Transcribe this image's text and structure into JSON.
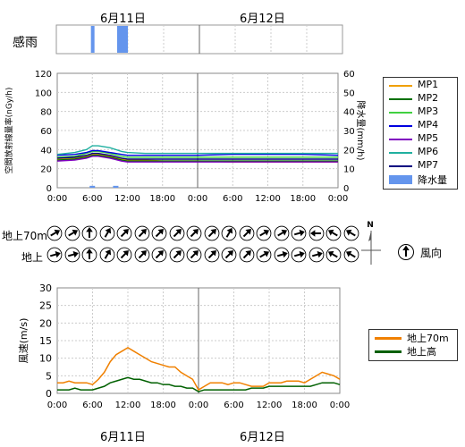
{
  "dates": {
    "day1": "6月11日",
    "day2": "6月12日"
  },
  "rain_sense": {
    "label": "感雨",
    "day1_intervals_hours": [
      [
        5.8,
        6.4
      ],
      [
        10.2,
        12.0
      ]
    ]
  },
  "time_ticks": [
    "0:00",
    "6:00",
    "12:00",
    "18:00",
    "0:00",
    "6:00",
    "12:00",
    "18:00",
    "0:00"
  ],
  "radiation_chart": {
    "ylabel_left": "空間放射線量率(nGy/h)",
    "ylabel_right": "降水量(mm/h)",
    "left_ticks": [
      "0",
      "20",
      "40",
      "60",
      "80",
      "100",
      "120"
    ],
    "right_ticks": [
      "0",
      "10",
      "20",
      "30",
      "40",
      "50",
      "60"
    ]
  },
  "wind_dir": {
    "row1_label": "地上70m",
    "row2_label": "地上",
    "legend_label": "風向",
    "north_label": "N",
    "row1_angles": [
      60,
      60,
      0,
      30,
      45,
      45,
      45,
      45,
      45,
      45,
      30,
      45,
      60,
      60,
      75,
      270,
      300,
      300
    ],
    "row2_angles": [
      75,
      75,
      0,
      30,
      45,
      45,
      45,
      45,
      45,
      45,
      45,
      45,
      60,
      75,
      75,
      75,
      300,
      300
    ]
  },
  "wind_chart": {
    "ylabel": "風速(m/s)",
    "ticks": [
      "0",
      "5",
      "10",
      "15",
      "20",
      "25",
      "30"
    ]
  },
  "chart_data": [
    {
      "type": "line",
      "title": "",
      "ylabel": "空間放射線量率(nGy/h)",
      "ylim": [
        0,
        120
      ],
      "y2label": "降水量(mm/h)",
      "y2lim": [
        0,
        60
      ],
      "x_range_hours": [
        0,
        48
      ],
      "x_ticks": [
        "0:00",
        "6:00",
        "12:00",
        "18:00",
        "0:00",
        "6:00",
        "12:00",
        "18:00",
        "0:00"
      ],
      "x_hours": [
        0,
        3,
        5,
        6,
        7,
        9,
        11,
        12,
        15,
        18,
        24,
        30,
        36,
        42,
        48
      ],
      "series": [
        {
          "name": "MP1",
          "color": "#f0a000",
          "values": [
            30,
            31,
            33,
            35,
            35,
            33,
            30,
            29,
            29,
            28,
            28,
            27,
            27,
            27,
            27
          ]
        },
        {
          "name": "MP2",
          "color": "#007000",
          "values": [
            29,
            30,
            32,
            34,
            34,
            32,
            29,
            28,
            28,
            28,
            28,
            28,
            28,
            28,
            28
          ]
        },
        {
          "name": "MP3",
          "color": "#40d040",
          "values": [
            32,
            33,
            36,
            38,
            38,
            36,
            33,
            32,
            32,
            32,
            32,
            32,
            32,
            32,
            32
          ]
        },
        {
          "name": "MP4",
          "color": "#0000e0",
          "values": [
            34,
            35,
            37,
            39,
            39,
            37,
            35,
            34,
            34,
            34,
            34,
            35,
            35,
            35,
            34
          ]
        },
        {
          "name": "MP5",
          "color": "#8000c0",
          "values": [
            28,
            29,
            31,
            33,
            33,
            31,
            28,
            27,
            27,
            27,
            27,
            27,
            27,
            27,
            27
          ]
        },
        {
          "name": "MP6",
          "color": "#20b0a0",
          "values": [
            35,
            37,
            40,
            44,
            44,
            42,
            38,
            37,
            36,
            36,
            36,
            36,
            36,
            36,
            36
          ]
        },
        {
          "name": "MP7",
          "color": "#000080",
          "values": [
            31,
            32,
            34,
            36,
            36,
            34,
            31,
            30,
            30,
            30,
            30,
            30,
            30,
            30,
            30
          ]
        }
      ],
      "precip": {
        "name": "降水量",
        "color": "#6495ed",
        "x_hours": [
          6,
          10
        ],
        "values": [
          1,
          1
        ]
      },
      "grid": true,
      "legend": "right"
    },
    {
      "type": "line",
      "title": "",
      "ylabel": "風速(m/s)",
      "ylim": [
        0,
        30
      ],
      "x_range_hours": [
        0,
        48
      ],
      "x_ticks": [
        "0:00",
        "6:00",
        "12:00",
        "18:00",
        "0:00",
        "6:00",
        "12:00",
        "18:00",
        "0:00"
      ],
      "x_hours": [
        0,
        1,
        2,
        3,
        4,
        5,
        6,
        7,
        8,
        9,
        10,
        11,
        12,
        13,
        14,
        15,
        16,
        17,
        18,
        19,
        20,
        21,
        22,
        23,
        24,
        25,
        26,
        27,
        28,
        29,
        30,
        31,
        32,
        33,
        34,
        35,
        36,
        37,
        38,
        39,
        40,
        41,
        42,
        43,
        44,
        45,
        46,
        47,
        48
      ],
      "series": [
        {
          "name": "地上70m",
          "color": "#f08000",
          "values": [
            3,
            3,
            3.5,
            3,
            3,
            3,
            2.5,
            4,
            6,
            9,
            11,
            12,
            13,
            12,
            11,
            10,
            9,
            8.5,
            8,
            7.5,
            7.5,
            6,
            5,
            4,
            1,
            2,
            3,
            3,
            3,
            2.5,
            3,
            3,
            2.5,
            2,
            2,
            2,
            3,
            3,
            3,
            3.5,
            3.5,
            3.5,
            3,
            4,
            5,
            6,
            5.5,
            5,
            4
          ]
        },
        {
          "name": "地上高",
          "color": "#006000",
          "values": [
            1,
            1,
            1,
            1.5,
            1,
            1,
            1,
            1.5,
            2,
            3,
            3.5,
            4,
            4.5,
            4,
            4,
            3.5,
            3,
            3,
            2.5,
            2.5,
            2,
            2,
            1.5,
            1.5,
            0.5,
            1,
            1,
            1,
            1,
            1,
            1,
            1,
            1,
            1.5,
            1.5,
            1.5,
            2,
            2,
            2,
            2,
            2,
            2,
            2,
            2,
            2.5,
            3,
            3,
            3,
            2.5
          ]
        }
      ],
      "grid": true,
      "legend": "right"
    }
  ]
}
